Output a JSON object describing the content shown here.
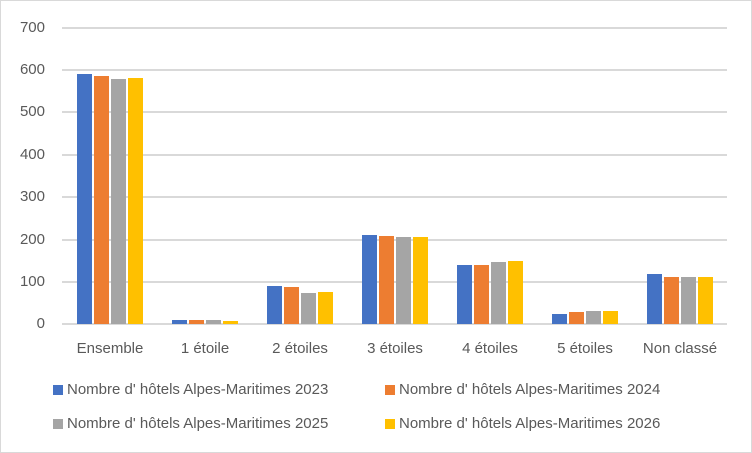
{
  "chart_data": {
    "type": "bar",
    "title": "",
    "xlabel": "",
    "ylabel": "",
    "ylim": [
      0,
      700
    ],
    "yticks": [
      0,
      100,
      200,
      300,
      400,
      500,
      600,
      700
    ],
    "grid": true,
    "legend_position": "bottom",
    "categories": [
      "Ensemble",
      "1 étoile",
      "2 étoiles",
      "3 étoiles",
      "4 étoiles",
      "5 étoiles",
      "Non classé"
    ],
    "series": [
      {
        "name": "Nombre d' hôtels Alpes-Maritimes  2023",
        "color": "#4472C4",
        "values": [
          590,
          10,
          90,
          211,
          140,
          25,
          119
        ]
      },
      {
        "name": "Nombre d' hôtels Alpes-Maritimes  2024",
        "color": "#ED7D31",
        "values": [
          585,
          10,
          88,
          209,
          140,
          29,
          112
        ]
      },
      {
        "name": "Nombre d' hôtels Alpes-Maritimes  2025",
        "color": "#A5A5A5",
        "values": [
          580,
          10,
          75,
          206,
          147,
          31,
          112
        ]
      },
      {
        "name": "Nombre d' hôtels Alpes-Maritimes  2026",
        "color": "#FFC000",
        "values": [
          582,
          8,
          77,
          206,
          150,
          31,
          112
        ]
      }
    ]
  }
}
